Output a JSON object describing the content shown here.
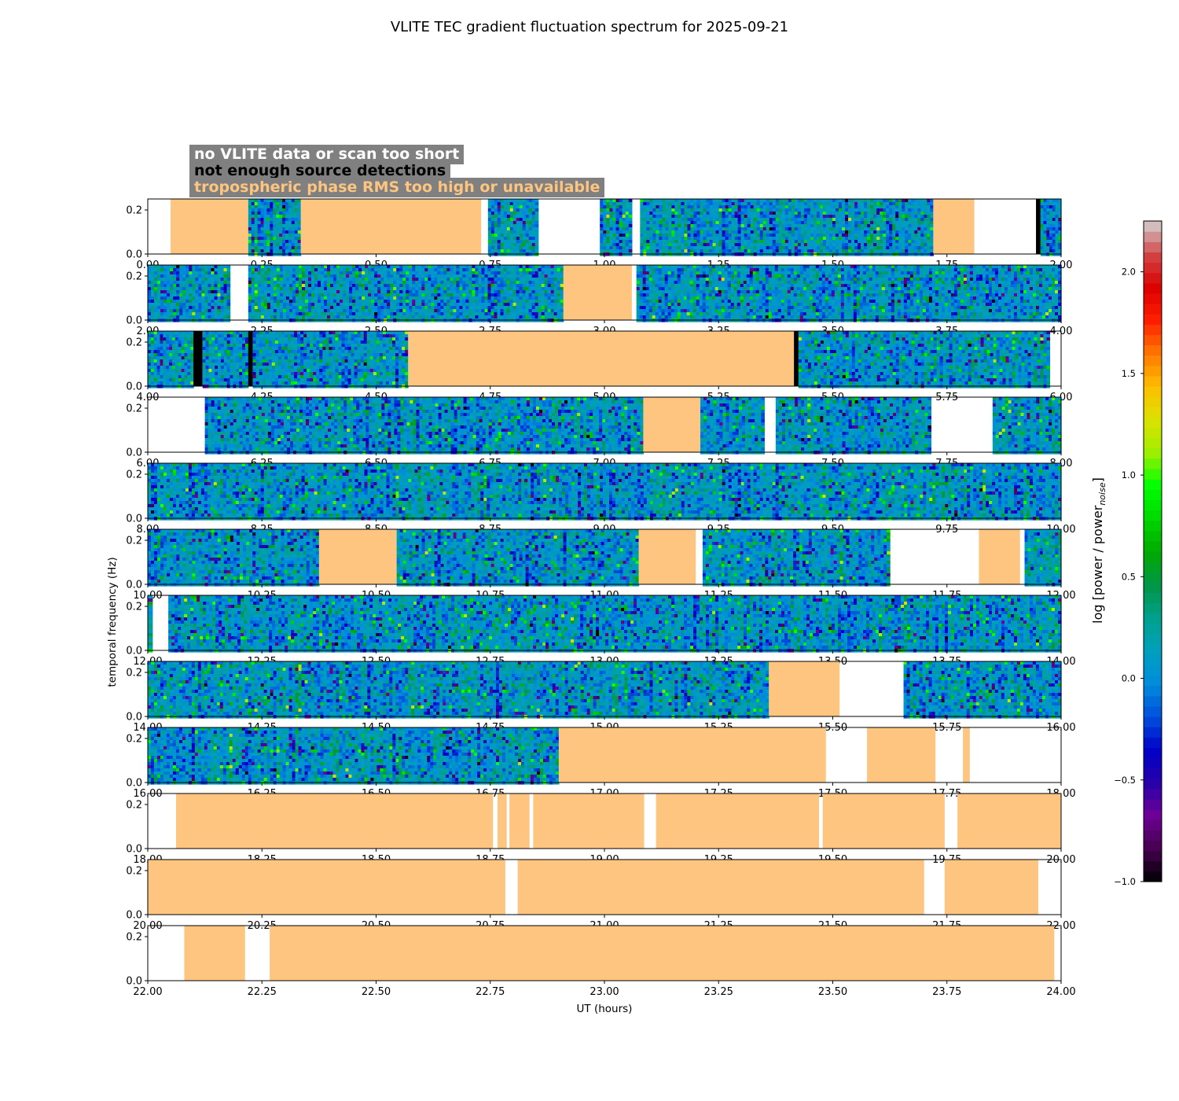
{
  "chart_data": {
    "type": "heatmap",
    "title": "VLITE TEC gradient fluctuation spectrum for 2025-09-21",
    "xlabel": "UT (hours)",
    "ylabel": "temporal frequency (Hz)",
    "colorbar_label": "log [power / power",
    "colorbar_label_sub": "noise",
    "colorbar_label_end": "]",
    "colorbar_range": [
      -1.0,
      2.25
    ],
    "colorbar_ticks": [
      {
        "value": 2.0,
        "label": "2.0"
      },
      {
        "value": 1.5,
        "label": "1.5"
      },
      {
        "value": 1.0,
        "label": "1.0"
      },
      {
        "value": 0.5,
        "label": "0.5"
      },
      {
        "value": 0.0,
        "label": "0.0"
      },
      {
        "value": -0.5,
        "label": "−0.5"
      },
      {
        "value": -1.0,
        "label": "−1.0"
      }
    ],
    "ylim": [
      0.0,
      0.25
    ],
    "y_ticks": [
      {
        "value": 0.0,
        "label": "0.0"
      },
      {
        "value": 0.2,
        "label": "0.2"
      }
    ],
    "legend": [
      {
        "label": "no VLITE data or scan too short",
        "color": "#ffffff",
        "background": "#808080"
      },
      {
        "label": "not enough source detections",
        "color": "#000000",
        "background": "#808080"
      },
      {
        "label": "tropospheric phase RMS too high or unavailable",
        "color": "#fdc57f",
        "background": "#808080"
      }
    ],
    "category_colors": {
      "no_data": "#ffffff",
      "trop": "#fdc57f",
      "detections": "#000000"
    },
    "panels": [
      {
        "xlim": [
          0,
          2
        ],
        "x_ticks": [
          "0.00",
          "0.25",
          "0.50",
          "0.75",
          "1.00",
          "1.25",
          "1.50",
          "1.75",
          "2.00"
        ],
        "segments": [
          [
            0.0,
            0.05,
            "none"
          ],
          [
            0.05,
            0.22,
            "trop"
          ],
          [
            0.22,
            0.335,
            "data"
          ],
          [
            0.335,
            0.73,
            "trop"
          ],
          [
            0.73,
            0.745,
            "none"
          ],
          [
            0.745,
            0.855,
            "data"
          ],
          [
            0.855,
            0.99,
            "none"
          ],
          [
            0.99,
            1.06,
            "data"
          ],
          [
            1.06,
            1.078,
            "none"
          ],
          [
            1.078,
            1.72,
            "data"
          ],
          [
            1.72,
            1.81,
            "trop"
          ],
          [
            1.81,
            1.945,
            "none"
          ],
          [
            1.945,
            1.955,
            "detections"
          ],
          [
            1.955,
            2.0,
            "data"
          ]
        ]
      },
      {
        "xlim": [
          2,
          4
        ],
        "x_ticks": [
          "2.00",
          "2.25",
          "2.50",
          "2.75",
          "3.00",
          "3.25",
          "3.50",
          "3.75",
          "4.00"
        ],
        "segments": [
          [
            2.0,
            2.18,
            "data"
          ],
          [
            2.18,
            2.22,
            "none"
          ],
          [
            2.22,
            2.91,
            "data"
          ],
          [
            2.91,
            3.06,
            "trop"
          ],
          [
            3.06,
            3.07,
            "none"
          ],
          [
            3.07,
            4.0,
            "data"
          ]
        ]
      },
      {
        "xlim": [
          4,
          6
        ],
        "x_ticks": [
          "4.00",
          "4.25",
          "4.50",
          "4.75",
          "5.00",
          "5.25",
          "5.50",
          "5.75",
          "6.00"
        ],
        "segments": [
          [
            4.0,
            4.1,
            "data"
          ],
          [
            4.1,
            4.12,
            "detections"
          ],
          [
            4.12,
            4.22,
            "data"
          ],
          [
            4.22,
            4.23,
            "detections"
          ],
          [
            4.23,
            4.57,
            "data"
          ],
          [
            4.57,
            5.415,
            "trop"
          ],
          [
            5.415,
            5.425,
            "detections"
          ],
          [
            5.425,
            5.975,
            "data"
          ],
          [
            5.975,
            6.0,
            "none"
          ]
        ]
      },
      {
        "xlim": [
          6,
          8
        ],
        "x_ticks": [
          "6.00",
          "6.25",
          "6.50",
          "6.75",
          "7.00",
          "7.25",
          "7.50",
          "7.75",
          "8.00"
        ],
        "segments": [
          [
            6.0,
            6.125,
            "none"
          ],
          [
            6.125,
            7.085,
            "data"
          ],
          [
            7.085,
            7.21,
            "trop"
          ],
          [
            7.21,
            7.35,
            "data"
          ],
          [
            7.35,
            7.375,
            "none"
          ],
          [
            7.375,
            7.715,
            "data"
          ],
          [
            7.715,
            7.85,
            "none"
          ],
          [
            7.85,
            8.0,
            "data"
          ]
        ]
      },
      {
        "xlim": [
          8,
          10
        ],
        "x_ticks": [
          "8.00",
          "8.25",
          "8.50",
          "8.75",
          "9.00",
          "9.25",
          "9.50",
          "9.75",
          "10.00"
        ],
        "segments": [
          [
            8.0,
            10.0,
            "data"
          ]
        ]
      },
      {
        "xlim": [
          10,
          12
        ],
        "x_ticks": [
          "10.00",
          "10.25",
          "10.50",
          "10.75",
          "11.00",
          "11.25",
          "11.50",
          "11.75",
          "12.00"
        ],
        "segments": [
          [
            10.0,
            10.375,
            "data"
          ],
          [
            10.375,
            10.545,
            "trop"
          ],
          [
            10.545,
            11.075,
            "data"
          ],
          [
            11.075,
            11.2,
            "trop"
          ],
          [
            11.2,
            11.215,
            "none"
          ],
          [
            11.215,
            11.625,
            "data"
          ],
          [
            11.625,
            11.82,
            "none"
          ],
          [
            11.82,
            11.91,
            "trop"
          ],
          [
            11.91,
            11.92,
            "none"
          ],
          [
            11.92,
            12.0,
            "data"
          ]
        ]
      },
      {
        "xlim": [
          12,
          14
        ],
        "x_ticks": [
          "12.00",
          "12.25",
          "12.50",
          "12.75",
          "13.00",
          "13.25",
          "13.50",
          "13.75",
          "14.00"
        ],
        "segments": [
          [
            12.0,
            12.01,
            "data"
          ],
          [
            12.01,
            12.045,
            "none"
          ],
          [
            12.045,
            14.0,
            "data"
          ]
        ]
      },
      {
        "xlim": [
          14,
          16
        ],
        "x_ticks": [
          "14.00",
          "14.25",
          "14.50",
          "14.75",
          "15.00",
          "15.25",
          "15.50",
          "15.75",
          "16.00"
        ],
        "segments": [
          [
            14.0,
            15.36,
            "data"
          ],
          [
            15.36,
            15.515,
            "trop"
          ],
          [
            15.515,
            15.655,
            "none"
          ],
          [
            15.655,
            16.0,
            "data"
          ]
        ]
      },
      {
        "xlim": [
          16,
          18
        ],
        "x_ticks": [
          "16.00",
          "16.25",
          "16.50",
          "16.75",
          "17.00",
          "17.25",
          "17.50",
          "17.75",
          "18.00"
        ],
        "segments": [
          [
            16.0,
            16.9,
            "data"
          ],
          [
            16.9,
            17.485,
            "trop"
          ],
          [
            17.485,
            17.575,
            "none"
          ],
          [
            17.575,
            17.725,
            "trop"
          ],
          [
            17.725,
            17.785,
            "none"
          ],
          [
            17.785,
            17.8,
            "trop"
          ],
          [
            17.8,
            18.0,
            "none"
          ]
        ]
      },
      {
        "xlim": [
          18,
          20
        ],
        "x_ticks": [
          "18.00",
          "18.25",
          "18.50",
          "18.75",
          "19.00",
          "19.25",
          "19.50",
          "19.75",
          "20.00"
        ],
        "segments": [
          [
            18.0,
            18.062,
            "none"
          ],
          [
            18.062,
            18.756,
            "trop"
          ],
          [
            18.756,
            18.766,
            "none"
          ],
          [
            18.766,
            18.786,
            "trop"
          ],
          [
            18.786,
            18.792,
            "none"
          ],
          [
            18.792,
            18.836,
            "trop"
          ],
          [
            18.836,
            18.844,
            "none"
          ],
          [
            18.844,
            19.087,
            "trop"
          ],
          [
            19.087,
            19.113,
            "none"
          ],
          [
            19.113,
            19.47,
            "trop"
          ],
          [
            19.47,
            19.478,
            "none"
          ],
          [
            19.478,
            19.745,
            "trop"
          ],
          [
            19.745,
            19.773,
            "none"
          ],
          [
            19.773,
            20.0,
            "trop"
          ]
        ]
      },
      {
        "xlim": [
          20,
          22
        ],
        "x_ticks": [
          "20.00",
          "20.25",
          "20.50",
          "20.75",
          "21.00",
          "21.25",
          "21.50",
          "21.75",
          "22.00"
        ],
        "segments": [
          [
            20.0,
            20.783,
            "trop"
          ],
          [
            20.783,
            20.81,
            "none"
          ],
          [
            20.81,
            21.7,
            "trop"
          ],
          [
            21.7,
            21.745,
            "none"
          ],
          [
            21.745,
            21.95,
            "trop"
          ],
          [
            21.95,
            22.0,
            "none"
          ]
        ]
      },
      {
        "xlim": [
          22,
          24
        ],
        "x_ticks": [
          "22.00",
          "22.25",
          "22.50",
          "22.75",
          "23.00",
          "23.25",
          "23.50",
          "23.75",
          "24.00"
        ],
        "segments": [
          [
            22.0,
            22.08,
            "none"
          ],
          [
            22.08,
            22.213,
            "trop"
          ],
          [
            22.213,
            22.267,
            "none"
          ],
          [
            22.267,
            23.985,
            "trop"
          ],
          [
            23.985,
            24.0,
            "none"
          ]
        ]
      }
    ]
  }
}
